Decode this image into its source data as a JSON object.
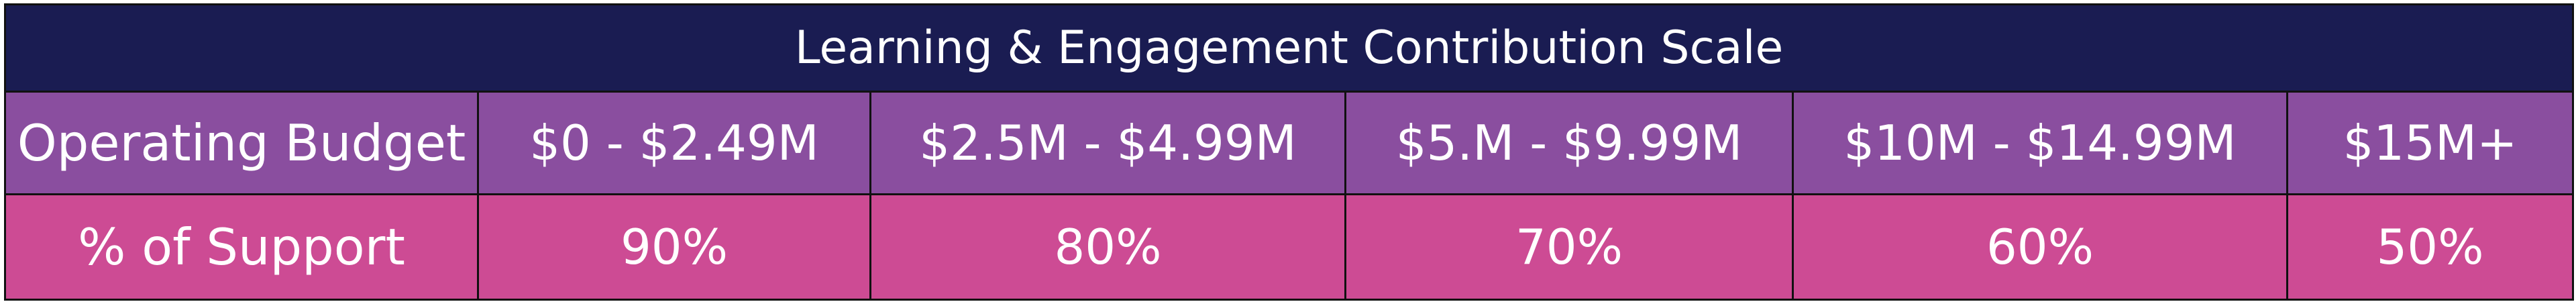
{
  "title": "Learning & Engagement Contribution Scale",
  "budget_row": {
    "label": "Operating Budget",
    "values": [
      "$0 - $2.49M",
      "$2.5M - $4.99M",
      "$5.M - $9.99M",
      "$10M - $14.99M",
      "$15M+"
    ]
  },
  "support_row": {
    "label": "% of Support",
    "values": [
      "90%",
      "80%",
      "70%",
      "60%",
      "50%"
    ]
  },
  "colors": {
    "title_background": "#1a1c52",
    "budget_row_background": "#8a4e9f",
    "support_row_background": "#cd4b94",
    "text": "#ffffff",
    "border": "#111111"
  }
}
